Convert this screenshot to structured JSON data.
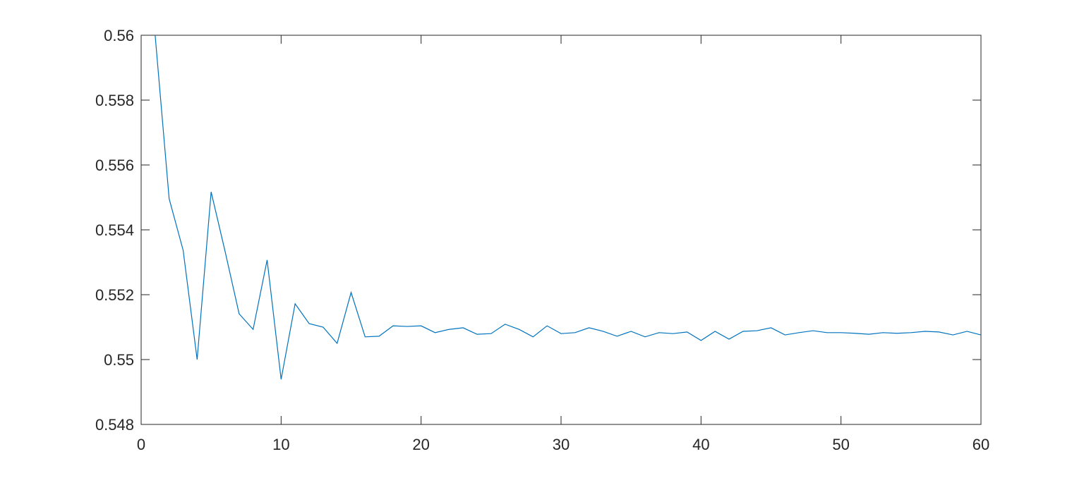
{
  "chart_data": {
    "type": "line",
    "x": [
      1,
      2,
      3,
      4,
      5,
      6,
      7,
      8,
      9,
      10,
      11,
      12,
      13,
      14,
      15,
      16,
      17,
      18,
      19,
      20,
      21,
      22,
      23,
      24,
      25,
      26,
      27,
      28,
      29,
      30,
      31,
      32,
      33,
      34,
      35,
      36,
      37,
      38,
      39,
      40,
      41,
      42,
      43,
      44,
      45,
      46,
      47,
      48,
      49,
      50,
      51,
      52,
      53,
      54,
      55,
      56,
      57,
      58,
      59,
      60
    ],
    "series": [
      {
        "color": "#0072bd",
        "values": [
          0.56,
          0.55496,
          0.55337,
          0.55,
          0.55517,
          0.55333,
          0.55141,
          0.55093,
          0.55307,
          0.54939,
          0.55172,
          0.55111,
          0.551,
          0.5505,
          0.55207,
          0.5507,
          0.55072,
          0.55104,
          0.55102,
          0.55104,
          0.55083,
          0.55093,
          0.55098,
          0.55078,
          0.5508,
          0.55109,
          0.55093,
          0.5507,
          0.55104,
          0.5508,
          0.55083,
          0.55098,
          0.55087,
          0.55072,
          0.55087,
          0.5507,
          0.55083,
          0.5508,
          0.55085,
          0.55059,
          0.55087,
          0.55063,
          0.55087,
          0.55089,
          0.55098,
          0.55076,
          0.55083,
          0.55089,
          0.55083,
          0.55083,
          0.55081,
          0.55078,
          0.55083,
          0.55081,
          0.55083,
          0.55087,
          0.55085,
          0.55076,
          0.55087,
          0.55076
        ]
      }
    ],
    "xlim": [
      0,
      60
    ],
    "xticks": [
      0,
      10,
      20,
      30,
      40,
      50,
      60
    ],
    "ylim": [
      0.548,
      0.56
    ],
    "yticks": [
      0.548,
      0.55,
      0.552,
      0.554,
      0.556,
      0.558,
      0.56
    ],
    "grid": false
  }
}
